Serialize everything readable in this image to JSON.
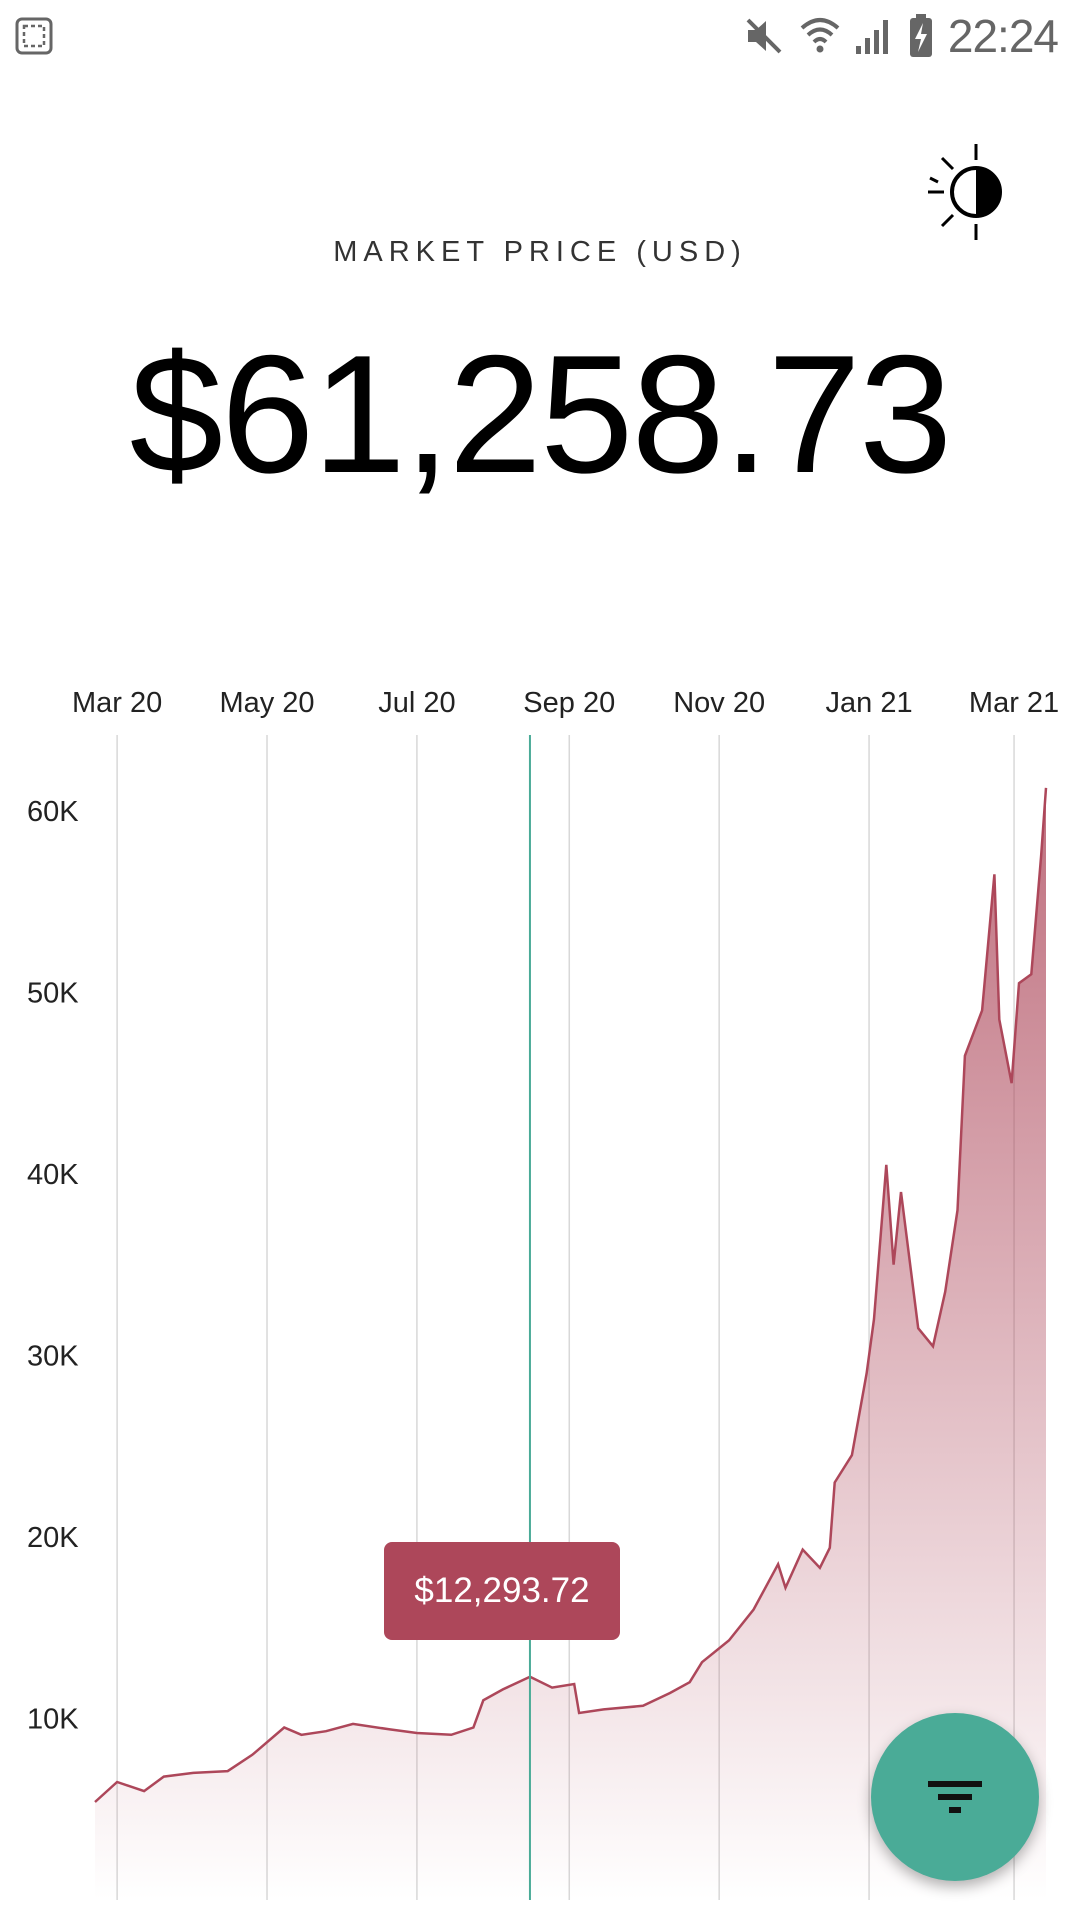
{
  "status_bar": {
    "time": "22:24",
    "icons": [
      "screenshot-icon",
      "mute-icon",
      "wifi-icon",
      "signal-icon",
      "battery-charging-icon"
    ]
  },
  "header": {
    "theme_toggle_icon": "brightness-icon",
    "label": "MARKET PRICE (USD)",
    "price": "$61,258.73"
  },
  "colors": {
    "series": "#ad475a",
    "cursor": "#4aab97",
    "fab": "#4aab97"
  },
  "tooltip": {
    "value": "$12,293.72",
    "date": "2020-08-16"
  },
  "fab": {
    "icon": "filter-icon"
  },
  "chart_data": {
    "type": "area",
    "title": "",
    "xlabel": "",
    "ylabel": "",
    "x_tick_labels": [
      "Mar 20",
      "May 20",
      "Jul 20",
      "Sep 20",
      "Nov 20",
      "Jan 21",
      "Mar 21"
    ],
    "x_ticks": [
      "2020-03-01",
      "2020-05-01",
      "2020-07-01",
      "2020-09-01",
      "2020-11-01",
      "2021-01-01",
      "2021-03-01"
    ],
    "y_tick_labels": [
      "10K",
      "20K",
      "30K",
      "40K",
      "50K",
      "60K"
    ],
    "y_ticks": [
      10000,
      20000,
      30000,
      40000,
      50000,
      60000
    ],
    "xlim": [
      "2020-02-21",
      "2021-03-14"
    ],
    "ylim": [
      0,
      65000
    ],
    "grid": "vertical",
    "series": [
      {
        "values": [
          {
            "x": "2020-02-21",
            "y": 5400
          },
          {
            "x": "2020-03-01",
            "y": 6500
          },
          {
            "x": "2020-03-12",
            "y": 6000
          },
          {
            "x": "2020-03-20",
            "y": 6800
          },
          {
            "x": "2020-04-01",
            "y": 7000
          },
          {
            "x": "2020-04-15",
            "y": 7100
          },
          {
            "x": "2020-04-25",
            "y": 8000
          },
          {
            "x": "2020-05-08",
            "y": 9500
          },
          {
            "x": "2020-05-15",
            "y": 9100
          },
          {
            "x": "2020-05-25",
            "y": 9300
          },
          {
            "x": "2020-06-05",
            "y": 9700
          },
          {
            "x": "2020-06-20",
            "y": 9400
          },
          {
            "x": "2020-07-01",
            "y": 9200
          },
          {
            "x": "2020-07-15",
            "y": 9100
          },
          {
            "x": "2020-07-24",
            "y": 9500
          },
          {
            "x": "2020-07-28",
            "y": 11000
          },
          {
            "x": "2020-08-05",
            "y": 11600
          },
          {
            "x": "2020-08-16",
            "y": 12293.72
          },
          {
            "x": "2020-08-25",
            "y": 11700
          },
          {
            "x": "2020-09-03",
            "y": 11900
          },
          {
            "x": "2020-09-05",
            "y": 10300
          },
          {
            "x": "2020-09-15",
            "y": 10500
          },
          {
            "x": "2020-10-01",
            "y": 10700
          },
          {
            "x": "2020-10-12",
            "y": 11400
          },
          {
            "x": "2020-10-20",
            "y": 12000
          },
          {
            "x": "2020-10-25",
            "y": 13100
          },
          {
            "x": "2020-11-05",
            "y": 14300
          },
          {
            "x": "2020-11-15",
            "y": 16000
          },
          {
            "x": "2020-11-25",
            "y": 18500
          },
          {
            "x": "2020-11-28",
            "y": 17200
          },
          {
            "x": "2020-12-05",
            "y": 19300
          },
          {
            "x": "2020-12-12",
            "y": 18300
          },
          {
            "x": "2020-12-16",
            "y": 19400
          },
          {
            "x": "2020-12-18",
            "y": 23000
          },
          {
            "x": "2020-12-25",
            "y": 24500
          },
          {
            "x": "2020-12-31",
            "y": 29000
          },
          {
            "x": "2021-01-03",
            "y": 32000
          },
          {
            "x": "2021-01-08",
            "y": 40500
          },
          {
            "x": "2021-01-11",
            "y": 35000
          },
          {
            "x": "2021-01-14",
            "y": 39000
          },
          {
            "x": "2021-01-21",
            "y": 31500
          },
          {
            "x": "2021-01-27",
            "y": 30500
          },
          {
            "x": "2021-02-01",
            "y": 33500
          },
          {
            "x": "2021-02-06",
            "y": 38000
          },
          {
            "x": "2021-02-09",
            "y": 46500
          },
          {
            "x": "2021-02-16",
            "y": 49000
          },
          {
            "x": "2021-02-21",
            "y": 56500
          },
          {
            "x": "2021-02-23",
            "y": 48500
          },
          {
            "x": "2021-02-28",
            "y": 45000
          },
          {
            "x": "2021-03-03",
            "y": 50500
          },
          {
            "x": "2021-03-08",
            "y": 51000
          },
          {
            "x": "2021-03-12",
            "y": 57500
          },
          {
            "x": "2021-03-14",
            "y": 61258.73
          }
        ]
      }
    ]
  }
}
